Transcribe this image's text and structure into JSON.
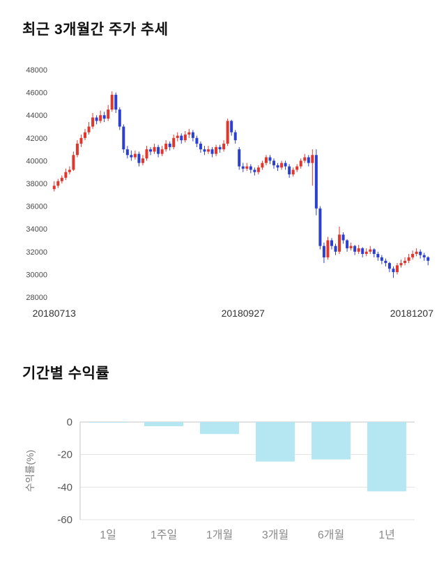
{
  "price_section": {
    "title": "최근 3개월간 주가 추세"
  },
  "returns_section": {
    "title": "기간별 수익률"
  },
  "chart_data": [
    {
      "type": "candlestick",
      "title": "최근 3개월간 주가 추세",
      "ylim": [
        28000,
        48000
      ],
      "y_ticks": [
        48000,
        46000,
        44000,
        42000,
        40000,
        38000,
        36000,
        34000,
        32000,
        30000,
        28000
      ],
      "x_tick_labels": [
        "20180713",
        "20180927",
        "20181207"
      ],
      "x_tick_indices": [
        0,
        49,
        97
      ],
      "up_color": "#e1362c",
      "down_color": "#2b3fd0",
      "grid": false,
      "candles": [
        [
          37500,
          38200,
          37300,
          37800
        ],
        [
          37800,
          38400,
          37600,
          38200
        ],
        [
          38200,
          38700,
          38000,
          38500
        ],
        [
          38500,
          39300,
          38300,
          39000
        ],
        [
          39000,
          39500,
          38800,
          39200
        ],
        [
          39200,
          40800,
          39100,
          40500
        ],
        [
          40500,
          41800,
          40300,
          41500
        ],
        [
          41500,
          42300,
          41200,
          42000
        ],
        [
          42000,
          42800,
          41800,
          42500
        ],
        [
          42500,
          43400,
          42300,
          43000
        ],
        [
          43000,
          44200,
          42800,
          43800
        ],
        [
          43800,
          44000,
          43200,
          43500
        ],
        [
          43500,
          44400,
          43300,
          44000
        ],
        [
          44000,
          44300,
          43400,
          43700
        ],
        [
          43700,
          44900,
          43500,
          44500
        ],
        [
          44500,
          46100,
          44300,
          45800
        ],
        [
          45800,
          46000,
          44200,
          44500
        ],
        [
          44500,
          44700,
          42700,
          43000
        ],
        [
          43000,
          43200,
          40700,
          41000
        ],
        [
          41000,
          41300,
          40200,
          40500
        ],
        [
          40500,
          40900,
          40000,
          40300
        ],
        [
          40300,
          40900,
          40100,
          40600
        ],
        [
          40600,
          40800,
          39500,
          39800
        ],
        [
          39800,
          40500,
          39600,
          40200
        ],
        [
          40200,
          41300,
          40000,
          41000
        ],
        [
          41000,
          41200,
          40500,
          40800
        ],
        [
          40800,
          41500,
          40600,
          41200
        ],
        [
          41200,
          41400,
          40300,
          40600
        ],
        [
          40600,
          41300,
          40400,
          41000
        ],
        [
          41000,
          41800,
          40800,
          41500
        ],
        [
          41500,
          41700,
          40900,
          41200
        ],
        [
          41200,
          42300,
          41000,
          42000
        ],
        [
          42000,
          42500,
          41700,
          42200
        ],
        [
          42200,
          42400,
          41500,
          41800
        ],
        [
          41800,
          42600,
          41600,
          42300
        ],
        [
          42300,
          42800,
          42000,
          42500
        ],
        [
          42500,
          42700,
          41700,
          42000
        ],
        [
          42000,
          42200,
          41200,
          41500
        ],
        [
          41500,
          41700,
          40700,
          41000
        ],
        [
          41000,
          41300,
          40500,
          40800
        ],
        [
          40800,
          41300,
          40600,
          41000
        ],
        [
          41000,
          41200,
          40300,
          40600
        ],
        [
          40600,
          41400,
          40400,
          41200
        ],
        [
          41200,
          41400,
          40700,
          41000
        ],
        [
          41000,
          41800,
          40800,
          41500
        ],
        [
          41500,
          43700,
          41300,
          43500
        ],
        [
          43500,
          43600,
          42200,
          42500
        ],
        [
          42500,
          42700,
          41500,
          41800
        ],
        [
          41000,
          41200,
          39200,
          39500
        ],
        [
          39500,
          39800,
          39000,
          39300
        ],
        [
          39300,
          39800,
          39100,
          39500
        ],
        [
          39500,
          39700,
          38900,
          39200
        ],
        [
          39200,
          39400,
          38700,
          39000
        ],
        [
          39000,
          39600,
          38800,
          39400
        ],
        [
          39400,
          40000,
          39200,
          39800
        ],
        [
          39800,
          40500,
          39600,
          40300
        ],
        [
          40300,
          40500,
          39700,
          40000
        ],
        [
          40000,
          40200,
          39300,
          39600
        ],
        [
          39600,
          39800,
          39100,
          39400
        ],
        [
          39400,
          40000,
          39200,
          39800
        ],
        [
          39800,
          40000,
          39200,
          39500
        ],
        [
          39500,
          39700,
          38500,
          38800
        ],
        [
          38800,
          39400,
          38600,
          39200
        ],
        [
          39200,
          39700,
          39000,
          39500
        ],
        [
          39500,
          40200,
          39300,
          40000
        ],
        [
          40000,
          40600,
          39800,
          40300
        ],
        [
          40300,
          40500,
          39500,
          39800
        ],
        [
          39800,
          41000,
          37800,
          40500
        ],
        [
          40500,
          41000,
          35200,
          35800
        ],
        [
          35800,
          36000,
          32200,
          32500
        ],
        [
          32500,
          32800,
          31000,
          31500
        ],
        [
          31500,
          33300,
          31300,
          33000
        ],
        [
          33000,
          33200,
          32200,
          32500
        ],
        [
          32500,
          32700,
          31700,
          32000
        ],
        [
          32000,
          34200,
          31800,
          33500
        ],
        [
          33500,
          33700,
          32700,
          33000
        ],
        [
          33000,
          33100,
          32000,
          32300
        ],
        [
          32300,
          32800,
          32100,
          32500
        ],
        [
          32500,
          32600,
          31700,
          32000
        ],
        [
          32000,
          32600,
          31800,
          32300
        ],
        [
          32300,
          32400,
          31500,
          31800
        ],
        [
          31800,
          32300,
          31600,
          32000
        ],
        [
          32000,
          32500,
          31800,
          32200
        ],
        [
          32200,
          32300,
          31500,
          31800
        ],
        [
          31800,
          32000,
          31200,
          31500
        ],
        [
          31500,
          31700,
          30900,
          31200
        ],
        [
          31200,
          31400,
          30700,
          31000
        ],
        [
          31000,
          31100,
          30200,
          30500
        ],
        [
          30500,
          30700,
          29700,
          30200
        ],
        [
          30200,
          31000,
          30000,
          30800
        ],
        [
          30800,
          31300,
          30600,
          31000
        ],
        [
          31000,
          31500,
          30800,
          31200
        ],
        [
          31200,
          31800,
          31000,
          31500
        ],
        [
          31500,
          32100,
          31300,
          31800
        ],
        [
          31800,
          32300,
          31600,
          32000
        ],
        [
          32000,
          32200,
          31400,
          31700
        ],
        [
          31700,
          31900,
          31200,
          31500
        ],
        [
          31500,
          31600,
          30800,
          31200
        ]
      ]
    },
    {
      "type": "bar",
      "title": "기간별 수익률",
      "categories": [
        "1일",
        "1주일",
        "1개월",
        "3개월",
        "6개월",
        "1년"
      ],
      "values": [
        -0.3,
        -2.6,
        -7.4,
        -24.3,
        -23.0,
        -42.6
      ],
      "ylabel": "수익률(%)",
      "ylim": [
        -60,
        0
      ],
      "y_ticks": [
        0,
        -20,
        -40,
        -60
      ],
      "bar_color": "#b5e7f2",
      "grid": true,
      "legend": "none"
    }
  ]
}
